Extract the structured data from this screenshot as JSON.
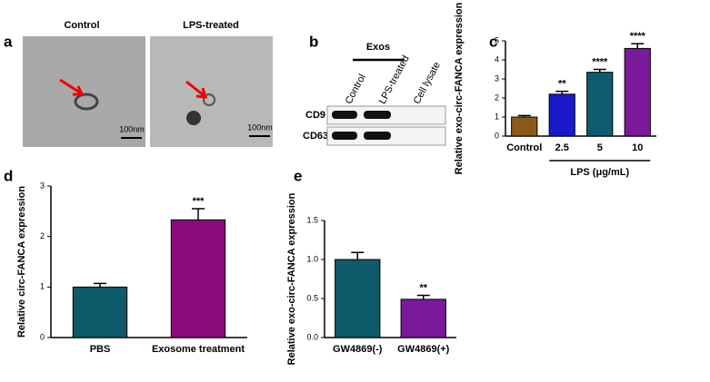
{
  "panels": {
    "a": {
      "letter": "a",
      "images": [
        "Control",
        "LPS-treated"
      ],
      "scale": [
        "100nm",
        "100nm"
      ]
    },
    "b": {
      "letter": "b",
      "group": "Exos",
      "columns": [
        "Control",
        "LPS-treated",
        "Cell lysate"
      ],
      "rows": [
        "CD9",
        "CD63"
      ]
    }
  },
  "chart_data": [
    {
      "type": "bar",
      "letter": "c",
      "ylabel": "Relative exo-circ-FANCA expression",
      "categories": [
        "Control",
        "2.5",
        "5",
        "10"
      ],
      "values": [
        1.0,
        2.2,
        3.35,
        4.6
      ],
      "errors": [
        0.08,
        0.15,
        0.15,
        0.25
      ],
      "annotations": [
        null,
        "**",
        "****",
        "****"
      ],
      "colors": [
        "#8b5a1a",
        "#1a1acc",
        "#0d5c6e",
        "#7a1a9a"
      ],
      "group_label": "LPS (μg/mL)",
      "ylim": [
        0,
        5
      ],
      "yticks": [
        0,
        1,
        2,
        3,
        4,
        5
      ]
    },
    {
      "type": "bar",
      "letter": "d",
      "ylabel": "Relative circ-FANCA expression",
      "categories": [
        "PBS",
        "Exosome treatment"
      ],
      "values": [
        1.0,
        2.33
      ],
      "errors": [
        0.07,
        0.22
      ],
      "annotations": [
        null,
        "***"
      ],
      "colors": [
        "#0f5a6a",
        "#8a0a7a"
      ],
      "ylim": [
        0,
        3
      ],
      "yticks": [
        0,
        1,
        2,
        3
      ]
    },
    {
      "type": "bar",
      "letter": "e",
      "ylabel": "Relative exo-circ-FANCA expression",
      "categories": [
        "GW4869(-)",
        "GW4869(+)"
      ],
      "values": [
        1.0,
        0.49
      ],
      "errors": [
        0.09,
        0.05
      ],
      "annotations": [
        null,
        "**"
      ],
      "colors": [
        "#0f5a6a",
        "#7a1a9a"
      ],
      "ylim": [
        0,
        1.5
      ],
      "yticks": [
        {
          "value": 0,
          "label": "0.0"
        },
        {
          "value": 0.5,
          "label": "0.5"
        },
        {
          "value": 1,
          "label": "1.0"
        },
        {
          "value": 1.5,
          "label": "1.5"
        }
      ]
    }
  ]
}
